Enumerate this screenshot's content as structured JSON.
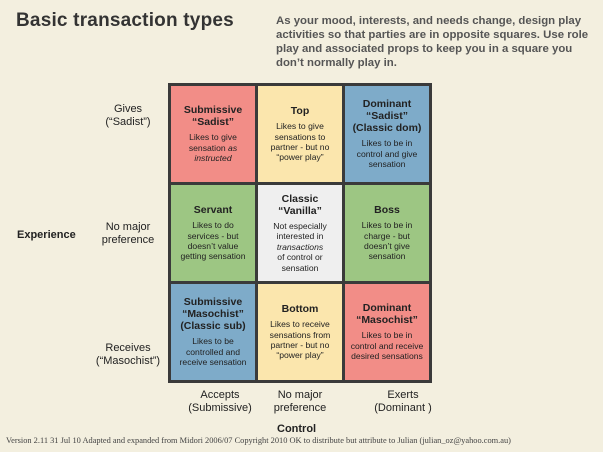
{
  "title": "Basic transaction types",
  "intro": "As your mood, interests, and needs change, design play activities so that parties are in opposite squares.  Use role play and associated props to keep you in a square you don’t normally play in.",
  "axes": {
    "experience": "Experience",
    "control": "Control"
  },
  "rows": [
    {
      "label": "Gives\n(“Sadist”)"
    },
    {
      "label": "No major\npreference"
    },
    {
      "label": "Receives\n(“Masochist”)"
    }
  ],
  "columns": [
    {
      "label": "Accepts\n(Submissive)"
    },
    {
      "label": "No major\npreference"
    },
    {
      "label": "Exerts\n(Dominant )"
    }
  ],
  "cells": [
    {
      "title": "Submissive\n“Sadist”",
      "desc_parts": [
        "Likes to give\nsensation ",
        "as\ninstructed",
        ""
      ],
      "color": "#f28d87"
    },
    {
      "title": "Top",
      "desc_parts": [
        "Likes to give\nsensations to\npartner - but no\n“power play”",
        "",
        ""
      ],
      "color": "#fbe6ad"
    },
    {
      "title": "Dominant\n“Sadist”\n(Classic dom)",
      "desc_parts": [
        "Likes to be in\ncontrol and give\nsensation",
        "",
        ""
      ],
      "color": "#7eabc9"
    },
    {
      "title": "Servant",
      "desc_parts": [
        "Likes to do\nservices - but\ndoesn’t value\ngetting sensation",
        "",
        ""
      ],
      "color": "#9dc683"
    },
    {
      "title": "Classic\n“Vanilla”",
      "desc_parts": [
        "Not especially\ninterested in\n",
        "transactions",
        "\nof control or\nsensation"
      ],
      "color": "#efefef"
    },
    {
      "title": "Boss",
      "desc_parts": [
        "Likes to be in\ncharge - but\ndoesn’t give\nsensation",
        "",
        ""
      ],
      "color": "#9dc683"
    },
    {
      "title": "Submissive\n“Masochist”\n(Classic sub)",
      "desc_parts": [
        "Likes to be\ncontrolled and\nreceive sensation",
        "",
        ""
      ],
      "color": "#7eabc9"
    },
    {
      "title": "Bottom",
      "desc_parts": [
        "Likes to receive\nsensations from\npartner - but no\n“power play”",
        "",
        ""
      ],
      "color": "#fbe6ad"
    },
    {
      "title": "Dominant\n“Masochist”",
      "desc_parts": [
        "Likes to be in\ncontrol and receive\ndesired sensations",
        "",
        ""
      ],
      "color": "#f28d87"
    }
  ],
  "footer": "Version 2.11   31 Jul 10   Adapted and expanded from Midori 2006/07   Copyright 2010 OK to distribute but attribute to Julian (julian_oz@yahoo.com.au)"
}
